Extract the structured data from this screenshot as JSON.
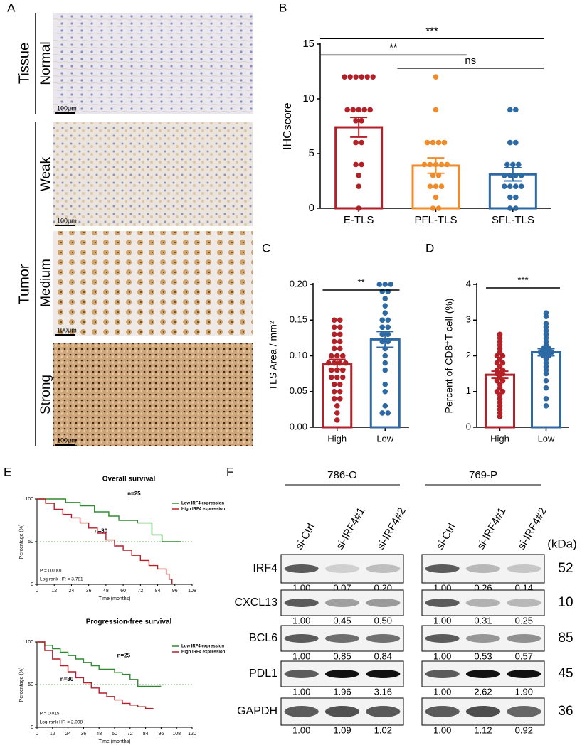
{
  "panel_a": {
    "label": "A",
    "tissue": "Tissue",
    "normal": "Normal",
    "tumor": "Tumor",
    "grades": [
      "Weak",
      "Medium",
      "Strong"
    ],
    "scale_bars": [
      "100μm",
      "100μm",
      "100μm",
      "100μm"
    ]
  },
  "chart_data": [
    {
      "panel": "B",
      "type": "bar",
      "categories": [
        "E-TLS",
        "PFL-TLS",
        "SFL-TLS"
      ],
      "values": [
        7.4,
        3.9,
        3.1
      ],
      "errors": [
        0.9,
        0.7,
        0.6
      ],
      "points": [
        [
          12,
          12,
          12,
          12,
          12,
          12,
          9,
          9,
          9,
          9,
          9,
          8,
          8,
          6,
          6,
          4,
          4,
          3,
          2,
          0
        ],
        [
          12,
          9,
          6,
          6,
          6,
          6,
          4,
          4,
          4,
          4,
          4,
          3,
          3,
          2,
          2,
          2,
          1,
          0,
          0
        ],
        [
          9,
          9,
          6,
          6,
          4,
          4,
          4,
          3,
          3,
          3,
          3,
          2,
          2,
          2,
          2,
          1,
          1,
          0,
          0
        ]
      ],
      "colors": [
        "#b22028",
        "#f08c2a",
        "#2d6aa3"
      ],
      "ylabel": "IHCscore",
      "ylim": [
        0,
        15
      ],
      "yticks": [
        0,
        5,
        10,
        15
      ],
      "significance": [
        {
          "from": 0,
          "to": 2,
          "y": 15.5,
          "label": "***"
        },
        {
          "from": 0,
          "to": 1,
          "y": 14.0,
          "label": "**"
        },
        {
          "from": 1,
          "to": 2,
          "y": 12.8,
          "label": "ns"
        }
      ]
    },
    {
      "panel": "C",
      "type": "bar",
      "categories": [
        "High",
        "Low"
      ],
      "values": [
        0.088,
        0.123
      ],
      "errors": [
        0.007,
        0.011
      ],
      "points": [
        [
          0.15,
          0.15,
          0.14,
          0.14,
          0.13,
          0.13,
          0.12,
          0.12,
          0.11,
          0.11,
          0.1,
          0.1,
          0.1,
          0.09,
          0.09,
          0.09,
          0.09,
          0.08,
          0.08,
          0.08,
          0.07,
          0.07,
          0.07,
          0.06,
          0.06,
          0.05,
          0.05,
          0.04,
          0.04,
          0.03,
          0.02,
          0.01
        ],
        [
          0.2,
          0.2,
          0.2,
          0.19,
          0.19,
          0.18,
          0.17,
          0.16,
          0.15,
          0.15,
          0.14,
          0.14,
          0.13,
          0.13,
          0.12,
          0.12,
          0.11,
          0.1,
          0.09,
          0.08,
          0.06,
          0.05,
          0.03,
          0.02,
          0.02
        ]
      ],
      "colors": [
        "#b22028",
        "#2d6aa3"
      ],
      "ylabel": "TLS Area / mm²",
      "ylim": [
        0,
        0.2
      ],
      "yticks": [
        {
          "value": 0,
          "label": "0.00"
        },
        {
          "value": 0.05,
          "label": "0.05"
        },
        {
          "value": 0.1,
          "label": "0.10"
        },
        {
          "value": 0.15,
          "label": "0.15"
        },
        {
          "value": 0.2,
          "label": "0.20"
        }
      ],
      "significance": [
        {
          "from": 0,
          "to": 1,
          "y": 0.192,
          "label": "**"
        }
      ]
    },
    {
      "panel": "D",
      "type": "bar",
      "categories": [
        "High",
        "Low"
      ],
      "values": [
        1.47,
        2.1
      ],
      "errors": [
        0.1,
        0.1
      ],
      "points": [
        [
          2.6,
          2.5,
          2.4,
          2.3,
          2.2,
          2.1,
          2.0,
          2.0,
          1.9,
          1.8,
          1.8,
          1.7,
          1.6,
          1.6,
          1.5,
          1.5,
          1.4,
          1.3,
          1.3,
          1.2,
          1.1,
          1.0,
          1.0,
          0.9,
          0.8,
          0.7,
          0.6,
          0.5,
          0.4,
          0.3
        ],
        [
          3.2,
          3.1,
          2.9,
          2.8,
          2.7,
          2.6,
          2.5,
          2.4,
          2.3,
          2.2,
          2.2,
          2.1,
          2.1,
          2.1,
          2.0,
          2.0,
          1.9,
          1.8,
          1.7,
          1.6,
          1.5,
          1.3,
          1.1,
          0.8,
          0.6
        ]
      ],
      "colors": [
        "#b22028",
        "#2d6aa3"
      ],
      "ylabel": "Percent of CD8⁺T cell (%)",
      "ylim": [
        0,
        4
      ],
      "yticks": [
        0,
        1,
        2,
        3,
        4
      ],
      "significance": [
        {
          "from": 0,
          "to": 1,
          "y": 3.9,
          "label": "***"
        }
      ]
    },
    {
      "panel": "E",
      "type": "km",
      "title": "Overall survival",
      "xlabel": "Time (months)",
      "ylabel": "Percentage (%)",
      "xlim": [
        0,
        108
      ],
      "xticks": [
        0,
        12,
        24,
        36,
        48,
        60,
        72,
        84,
        96,
        108
      ],
      "ylim": [
        0,
        100
      ],
      "yticks": [
        0,
        50,
        100
      ],
      "legend": "upper right",
      "series": [
        {
          "name": "Low IRF4 expression",
          "color": "#2e8b2e",
          "x": [
            0,
            20,
            30,
            40,
            50,
            57,
            70,
            80,
            87,
            100
          ],
          "values": [
            100,
            96,
            92,
            85,
            80,
            75,
            72,
            58,
            50,
            50
          ]
        },
        {
          "name": "High IRF4 expression",
          "color": "#b22028",
          "x": [
            0,
            6,
            12,
            18,
            24,
            30,
            36,
            42,
            48,
            54,
            60,
            66,
            72,
            78,
            84,
            90,
            92,
            94
          ],
          "values": [
            100,
            95,
            88,
            82,
            78,
            72,
            66,
            60,
            52,
            45,
            40,
            34,
            28,
            22,
            18,
            12,
            6,
            0
          ]
        }
      ],
      "annotations": [
        {
          "text": "n=25",
          "x": 63,
          "y": 106,
          "color": "#2e8b2e"
        },
        {
          "text": "n=80",
          "x": 40,
          "y": 62,
          "color": "#b22028"
        },
        {
          "text": "P = 0.0001",
          "x": 2,
          "y": 16,
          "color": "#000000"
        },
        {
          "text": "Log-rank HR = 3.781",
          "x": 2,
          "y": 6,
          "color": "#000000"
        }
      ]
    },
    {
      "type": "km",
      "title": "Progression-free survival",
      "xlabel": "Time (months)",
      "ylabel": "Percentage (%)",
      "xlim": [
        0,
        120
      ],
      "xticks": [
        0,
        12,
        24,
        36,
        48,
        60,
        72,
        84,
        96,
        108,
        120
      ],
      "ylim": [
        0,
        100
      ],
      "yticks": [
        0,
        50,
        100
      ],
      "legend": "upper right",
      "series": [
        {
          "name": "Low IRF4 expression",
          "color": "#2e8b2e",
          "x": [
            0,
            6,
            12,
            18,
            24,
            30,
            36,
            42,
            48,
            60,
            66,
            72,
            78,
            84,
            96
          ],
          "values": [
            100,
            96,
            92,
            88,
            84,
            80,
            76,
            72,
            68,
            64,
            62,
            56,
            48,
            48,
            48
          ]
        },
        {
          "name": "High IRF4 expression",
          "color": "#b22028",
          "x": [
            0,
            6,
            12,
            18,
            24,
            30,
            36,
            42,
            48,
            54,
            60,
            66,
            72,
            78,
            84,
            90
          ],
          "values": [
            100,
            90,
            80,
            72,
            65,
            58,
            52,
            46,
            40,
            36,
            32,
            28,
            26,
            24,
            22,
            22
          ]
        }
      ],
      "annotations": [
        {
          "text": "n=25",
          "x": 62,
          "y": 84,
          "color": "#2e8b2e"
        },
        {
          "text": "n=80",
          "x": 18,
          "y": 56,
          "color": "#b22028"
        },
        {
          "text": "P = 0.015",
          "x": 2,
          "y": 16,
          "color": "#000000"
        },
        {
          "text": "Log-rank HR = 2.008",
          "x": 2,
          "y": 6,
          "color": "#000000"
        }
      ]
    }
  ],
  "panel_f": {
    "label": "F",
    "kda_header": "(kDa)",
    "cell_lines": [
      "786-O",
      "769-P"
    ],
    "lanes": [
      "si-Ctrl",
      "si-IRF4#1",
      "si-IRF4#2"
    ],
    "rows": [
      {
        "protein": "IRF4",
        "kda": 52,
        "quant": [
          [
            "1.00",
            "0.07",
            "0.20"
          ],
          [
            "1.00",
            "0.26",
            "0.14"
          ]
        ]
      },
      {
        "protein": "CXCL13",
        "kda": 10,
        "quant": [
          [
            "1.00",
            "0.45",
            "0.50"
          ],
          [
            "1.00",
            "0.31",
            "0.25"
          ]
        ]
      },
      {
        "protein": "BCL6",
        "kda": 85,
        "quant": [
          [
            "1.00",
            "0.85",
            "0.84"
          ],
          [
            "1.00",
            "0.53",
            "0.57"
          ]
        ]
      },
      {
        "protein": "PDL1",
        "kda": 45,
        "quant": [
          [
            "1.00",
            "1.96",
            "3.16"
          ],
          [
            "1.00",
            "2.62",
            "1.90"
          ]
        ]
      },
      {
        "protein": "GAPDH",
        "kda": 36,
        "quant": [
          [
            "1.00",
            "1.09",
            "1.02"
          ],
          [
            "1.00",
            "1.12",
            "0.92"
          ]
        ]
      }
    ]
  }
}
